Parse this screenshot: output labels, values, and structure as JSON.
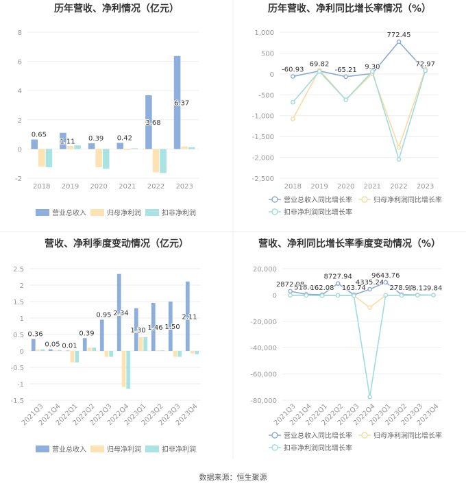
{
  "source": "数据来源：恒生聚源",
  "legend_labels": {
    "revenue": "营业总收入",
    "parent": "归母净利润",
    "deducted": "扣非净利润",
    "revenue_growth": "营业总收入同比增长率",
    "parent_growth": "归母净利润同比增长率",
    "deducted_growth": "扣非净利润同比增长率"
  },
  "colors": {
    "revenue": "#8eaedb",
    "parent": "#fde3b4",
    "deducted": "#a9e3e2",
    "revenue_line": "#8aa8d8",
    "parent_line": "#fbd9a0",
    "deducted_line": "#9fdcdc",
    "title": "#333333",
    "axis": "#999999",
    "grid": "#eeeeee",
    "label": "#333333"
  },
  "chart_data": [
    {
      "type": "bar",
      "title": "历年营收、净利情况（亿元）",
      "categories": [
        "2018",
        "2019",
        "2020",
        "2021",
        "2022",
        "2023"
      ],
      "ylim": [
        -2,
        8
      ],
      "yticks": [
        -2,
        0,
        2,
        4,
        6,
        8
      ],
      "grid": true,
      "legend": "bottom",
      "series": [
        {
          "name": "营业总收入",
          "values": [
            0.65,
            1.11,
            0.39,
            0.42,
            3.68,
            6.37
          ]
        },
        {
          "name": "归母净利润",
          "values": [
            -1.2,
            0.2,
            -1.25,
            -0.07,
            -1.6,
            0.17
          ]
        },
        {
          "name": "扣非净利润",
          "values": [
            -1.25,
            0.25,
            -1.35,
            0.05,
            -1.65,
            0.12
          ]
        }
      ],
      "data_labels": [
        "0.65",
        "1.11",
        "0.39",
        "0.42",
        "3.68",
        "6.37"
      ]
    },
    {
      "type": "line",
      "title": "历年营收、净利同比增长率情况（%）",
      "categories": [
        "2018",
        "2019",
        "2020",
        "2021",
        "2022",
        "2023"
      ],
      "ylim": [
        -2500,
        1000
      ],
      "yticks": [
        -2500,
        -2000,
        -1500,
        -1000,
        -500,
        0,
        500,
        1000
      ],
      "ytick_labels": [
        "-2,500",
        "-2,000",
        "-1,500",
        "-1,000",
        "-500",
        "0",
        "500",
        "1,000"
      ],
      "grid": true,
      "legend": "bottom",
      "series": [
        {
          "name": "营业总收入同比增长率",
          "values": [
            -60.93,
            69.82,
            -65.21,
            9.3,
            772.45,
            72.97
          ]
        },
        {
          "name": "归母净利润同比增长率",
          "values": [
            -1080,
            100,
            -620,
            10,
            -1760,
            110
          ]
        },
        {
          "name": "扣非净利润同比增长率",
          "values": [
            -680,
            60,
            -620,
            60,
            -2050,
            80
          ]
        }
      ],
      "data_labels": [
        "-60.93",
        "69.82",
        "-65.21",
        "9.30",
        "772.45",
        "72.97"
      ]
    },
    {
      "type": "bar",
      "title": "营收、净利季度变动情况（亿元）",
      "categories": [
        "2021Q3",
        "2021Q4",
        "2022Q1",
        "2022Q2",
        "2022Q3",
        "2022Q4",
        "2023Q1",
        "2023Q2",
        "2023Q3",
        "2023Q4"
      ],
      "ylim": [
        -1.5,
        2.5
      ],
      "yticks": [
        -1.5,
        -1,
        -0.5,
        0,
        0.5,
        1,
        1.5,
        2,
        2.5
      ],
      "grid": true,
      "legend": "bottom",
      "series": [
        {
          "name": "营业总收入",
          "values": [
            0.36,
            0.05,
            0.01,
            0.39,
            0.95,
            2.34,
            1.3,
            1.46,
            1.5,
            2.11
          ]
        },
        {
          "name": "归母净利润",
          "values": [
            0.05,
            0.02,
            -0.35,
            0.1,
            -0.18,
            -1.1,
            0.42,
            0.02,
            -0.18,
            -0.08
          ]
        },
        {
          "name": "扣非净利润",
          "values": [
            0.05,
            0.02,
            -0.35,
            0.1,
            -0.18,
            -1.15,
            0.42,
            0.02,
            -0.18,
            -0.1
          ]
        }
      ],
      "data_labels": [
        "0.36",
        "0.05",
        "0.01",
        "0.39",
        "0.95",
        "2.34",
        "1.30",
        "1.46",
        "1.50",
        "2.11"
      ]
    },
    {
      "type": "line",
      "title": "营收、净利同比增长率季度变动情况（%）",
      "categories": [
        "2021Q3",
        "2021Q4",
        "2022Q1",
        "2022Q2",
        "2022Q3",
        "2022Q4",
        "2023Q1",
        "2023Q2",
        "2023Q3",
        "2023Q4"
      ],
      "ylim": [
        -80000,
        20000
      ],
      "yticks": [
        -80000,
        -60000,
        -40000,
        -20000,
        0,
        20000
      ],
      "ytick_labels": [
        "-80,000",
        "-60,000",
        "-40,000",
        "-20,000",
        "0",
        "20,000"
      ],
      "grid": true,
      "legend": "bottom",
      "series": [
        {
          "name": "营业总收入同比增长率",
          "values": [
            2872.98,
            518.0,
            162.08,
            8727.94,
            163.74,
            4335.24,
            9643.76,
            278.94,
            18.13,
            -9.84
          ]
        },
        {
          "name": "归母净利润同比增长率",
          "values": [
            -200,
            -300,
            -500,
            -300,
            -500,
            -9500,
            -200,
            -300,
            -200,
            -100
          ]
        },
        {
          "name": "扣非净利润同比增长率",
          "values": [
            -200,
            -300,
            -500,
            -300,
            -500,
            -77500,
            -200,
            -300,
            -200,
            -100
          ]
        }
      ],
      "data_labels": [
        "2872.98",
        "518.00",
        "162.08",
        "8727.94",
        "163.74",
        "4335.24",
        "9643.76",
        "278.94",
        "18.13",
        "-9.84"
      ]
    }
  ]
}
